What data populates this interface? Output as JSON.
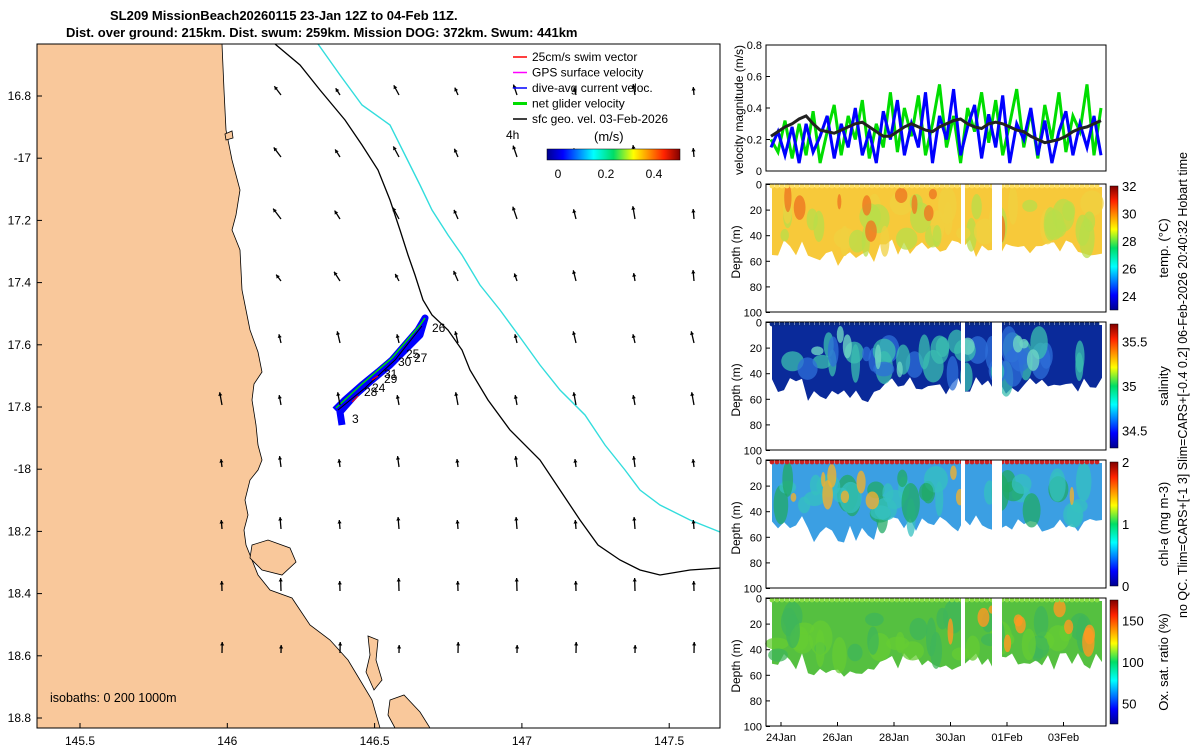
{
  "header": {
    "title": "SL209 MissionBeach20260115 23-Jan 12Z to 04-Feb 11Z.",
    "subtitle": "Dist. over ground: 215km. Dist. swum: 259km. Mission DOG: 372km. Swum: 441km"
  },
  "map": {
    "lat_ticks": [
      "16.8",
      "-17",
      "17.2",
      "17.4",
      "17.6",
      "17.8",
      "-18",
      "18.2",
      "18.4",
      "18.6",
      "18.8"
    ],
    "lon_ticks": [
      "145.5",
      "146",
      "146.5",
      "147",
      "147.5"
    ],
    "legend": [
      {
        "label": "25cm/s swim vector",
        "color": "#ff0000"
      },
      {
        "label": "GPS surface velocity",
        "color": "#ff00ff"
      },
      {
        "label": "dive-avg current veloc.",
        "color": "#0000ff"
      },
      {
        "label": "net glider velocity",
        "color": "#00dd00"
      },
      {
        "label": "sfc geo. vel. 03-Feb-2026",
        "color": "#000000"
      }
    ],
    "time_label": "4h",
    "colorbar_title": "(m/s)",
    "colorbar_ticks": [
      "0",
      "0.2",
      "0.4"
    ],
    "isobaths": "isobaths: 0    200  1000m",
    "day_labels": [
      "26",
      "25",
      "27",
      "30",
      "31",
      "29",
      "24",
      "28",
      "3"
    ],
    "colors": {
      "land": "#f9c89b",
      "isobath_200": "#000000",
      "isobath_1000": "#33dddd"
    }
  },
  "chart_data": [
    {
      "type": "line",
      "title": "",
      "ylabel": "velocity magnitude (m/s)",
      "ylim": [
        0,
        0.8
      ],
      "yticks": [
        "0",
        "0.2",
        "0.4",
        "0.6",
        "0.8"
      ],
      "series": [
        {
          "name": "net glider velocity",
          "color": "#00dd00",
          "values": [
            0.2,
            0.12,
            0.32,
            0.08,
            0.3,
            0.1,
            0.38,
            0.05,
            0.25,
            0.42,
            0.1,
            0.35,
            0.2,
            0.45,
            0.08,
            0.3,
            0.15,
            0.5,
            0.12,
            0.4,
            0.22,
            0.48,
            0.1,
            0.3,
            0.55,
            0.15,
            0.35,
            0.05,
            0.4,
            0.25,
            0.5,
            0.18,
            0.45,
            0.1,
            0.3,
            0.52,
            0.15,
            0.38,
            0.08,
            0.42,
            0.2,
            0.5,
            0.12,
            0.35,
            0.25,
            0.55,
            0.1,
            0.4
          ]
        },
        {
          "name": "dive-avg current",
          "color": "#0000ff",
          "values": [
            0.15,
            0.25,
            0.1,
            0.28,
            0.05,
            0.3,
            0.12,
            0.22,
            0.35,
            0.08,
            0.3,
            0.15,
            0.4,
            0.1,
            0.25,
            0.05,
            0.38,
            0.2,
            0.45,
            0.1,
            0.3,
            0.15,
            0.5,
            0.05,
            0.35,
            0.2,
            0.52,
            0.1,
            0.28,
            0.42,
            0.08,
            0.36,
            0.15,
            0.48,
            0.05,
            0.3,
            0.2,
            0.4,
            0.1,
            0.32,
            0.05,
            0.25,
            0.38,
            0.1,
            0.3,
            0.15,
            0.35,
            0.1
          ]
        },
        {
          "name": "sfc geo. vel.",
          "color": "#222222",
          "values": [
            0.22,
            0.25,
            0.28,
            0.3,
            0.33,
            0.35,
            0.3,
            0.26,
            0.25,
            0.24,
            0.26,
            0.28,
            0.3,
            0.31,
            0.28,
            0.25,
            0.22,
            0.22,
            0.25,
            0.28,
            0.3,
            0.28,
            0.26,
            0.25,
            0.28,
            0.3,
            0.32,
            0.33,
            0.3,
            0.28,
            0.27,
            0.3,
            0.31,
            0.3,
            0.28,
            0.26,
            0.25,
            0.22,
            0.2,
            0.18,
            0.19,
            0.2,
            0.22,
            0.25,
            0.27,
            0.28,
            0.3,
            0.32
          ]
        }
      ]
    },
    {
      "type": "heatmap",
      "ylabel": "Depth (m)",
      "clabel": "temp. (°C)",
      "yticks": [
        "0",
        "20",
        "40",
        "60",
        "80",
        "100"
      ],
      "cticks": [
        "32",
        "30",
        "28",
        "26",
        "24"
      ],
      "crange": [
        23,
        32
      ]
    },
    {
      "type": "heatmap",
      "ylabel": "Depth (m)",
      "clabel": "salinity",
      "yticks": [
        "0",
        "20",
        "40",
        "60",
        "80",
        "100"
      ],
      "cticks": [
        "35.5",
        "35",
        "34.5"
      ],
      "crange": [
        34.3,
        35.7
      ]
    },
    {
      "type": "heatmap",
      "ylabel": "Depth (m)",
      "clabel": "chl-a (mg m-3)",
      "yticks": [
        "0",
        "20",
        "40",
        "60",
        "80",
        "100"
      ],
      "cticks": [
        "2",
        "1",
        "0"
      ],
      "crange": [
        0,
        2
      ]
    },
    {
      "type": "heatmap",
      "ylabel": "Depth (m)",
      "clabel": "Ox. sat. ratio (%)",
      "yticks": [
        "0",
        "20",
        "40",
        "60",
        "80",
        "100"
      ],
      "cticks": [
        "150",
        "100",
        "50"
      ],
      "crange": [
        25,
        175
      ]
    }
  ],
  "time_axis": [
    "24Jan",
    "26Jan",
    "28Jan",
    "30Jan",
    "01Feb",
    "03Feb"
  ],
  "right_note": "no QC. Tlim=CARS+[-1 3] Slim=CARS+[-0.4 0.2] 06-Feb-2026 20:40:32 Hobart time"
}
